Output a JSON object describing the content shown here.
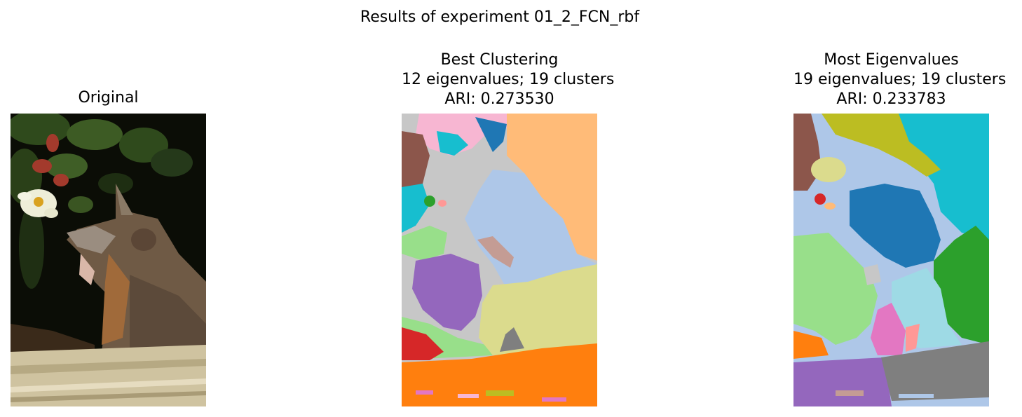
{
  "figure": {
    "suptitle": "Results of experiment 01_2_FCN_rbf",
    "panels": [
      {
        "id": "original",
        "title_lines": [
          "Original"
        ],
        "image": "photo-fox-with-daisy-flower"
      },
      {
        "id": "best",
        "title_lines": [
          "Best Clustering",
          "12 eigenvalues; 19 clusters",
          "ARI: 0.273530"
        ],
        "image": "segmentation-map-19-clusters"
      },
      {
        "id": "most",
        "title_lines": [
          "Most Eigenvalues",
          "19 eigenvalues; 19 clusters",
          "ARI: 0.233783"
        ],
        "image": "segmentation-map-19-clusters"
      }
    ]
  },
  "palette": {
    "blue": "#1f77b4",
    "light_blue": "#aec7e8",
    "orange": "#ff7f0e",
    "light_orange": "#ffbb78",
    "green": "#2ca02c",
    "light_green": "#98df8a",
    "red": "#d62728",
    "light_red": "#ff9896",
    "purple": "#9467bd",
    "brown": "#8c564b",
    "light_brown": "#c49c94",
    "pink": "#e377c2",
    "light_pink": "#f7b6d2",
    "gray": "#7f7f7f",
    "light_gray": "#c7c7c7",
    "olive": "#bcbd22",
    "light_olive": "#dbdb8d",
    "cyan": "#17becf",
    "light_cyan": "#9edae5"
  }
}
